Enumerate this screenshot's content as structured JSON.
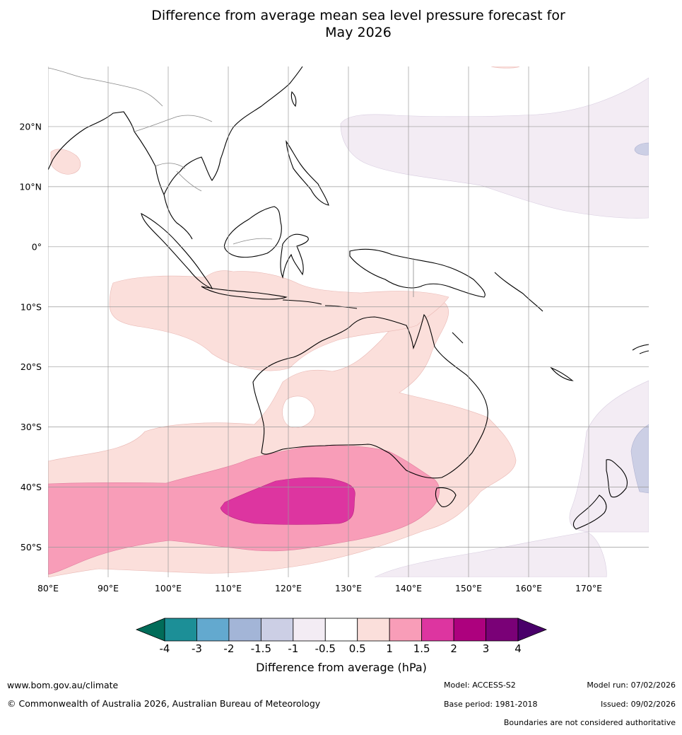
{
  "title_line1": "Difference from average mean sea level pressure forecast for",
  "title_line2": "May 2026",
  "map": {
    "lon_ticks": [
      "80°E",
      "90°E",
      "100°E",
      "110°E",
      "120°E",
      "130°E",
      "140°E",
      "150°E",
      "160°E",
      "170°E"
    ],
    "lat_ticks": [
      "20°N",
      "10°N",
      "0°",
      "10°S",
      "20°S",
      "30°S",
      "40°S",
      "50°S"
    ],
    "lon_range": [
      80,
      180
    ],
    "lat_range": [
      -55,
      30
    ]
  },
  "colorbar": {
    "ticks": [
      "-4",
      "-3",
      "-2",
      "-1.5",
      "-1",
      "-0.5",
      "0.5",
      "1",
      "1.5",
      "2",
      "3",
      "4"
    ],
    "label": "Difference from average (hPa)",
    "colors": [
      "#1c8f97",
      "#63a9cf",
      "#a3b5d7",
      "#cccfe5",
      "#f3ecf4",
      "#ffffff",
      "#fbdfdb",
      "#f89db8",
      "#dd35a0",
      "#ad017e",
      "#7a0177"
    ],
    "low_extend_color": "#016c59",
    "high_extend_color": "#49006a"
  },
  "footer": {
    "website": "www.bom.gov.au/climate",
    "copyright": "© Commonwealth of Australia 2026, Australian Bureau of Meteorology",
    "model": "Model: ACCESS-S2",
    "model_run": "Model run: 07/02/2026",
    "base_period": "Base period: 1981-2018",
    "issued": "Issued: 09/02/2026",
    "disclaimer": "Boundaries are not considered authoritative"
  }
}
